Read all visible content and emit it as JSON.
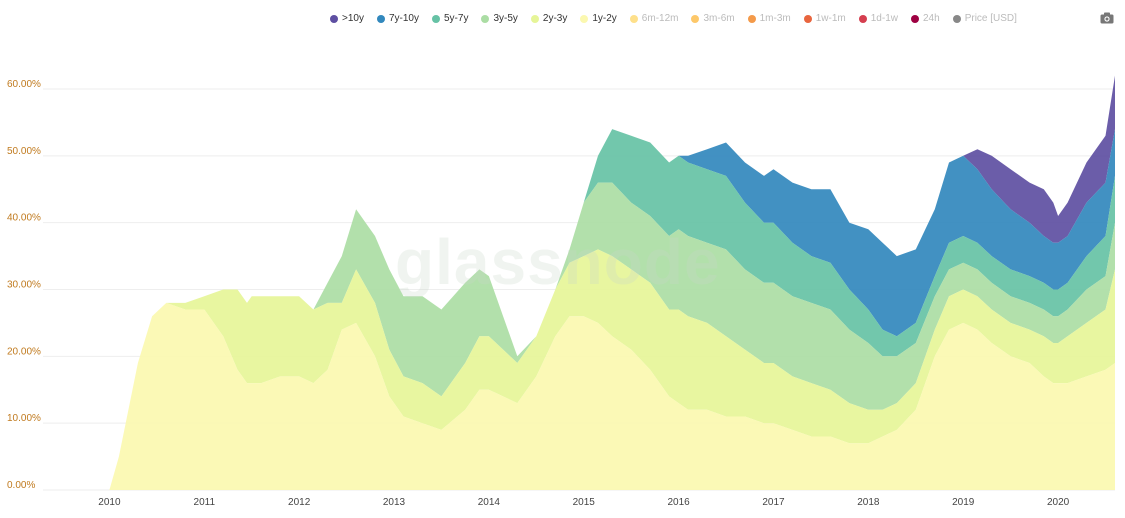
{
  "watermark": "glassnode",
  "legend": [
    {
      "label": ">10y",
      "color": "#5e4fa2",
      "active": true
    },
    {
      "label": "7y-10y",
      "color": "#3288bd",
      "active": true
    },
    {
      "label": "5y-7y",
      "color": "#66c2a5",
      "active": true
    },
    {
      "label": "3y-5y",
      "color": "#abdda4",
      "active": true
    },
    {
      "label": "2y-3y",
      "color": "#e6f598",
      "active": true
    },
    {
      "label": "1y-2y",
      "color": "#fbf8b0",
      "active": true
    },
    {
      "label": "6m-12m",
      "color": "#fee08b",
      "active": false
    },
    {
      "label": "3m-6m",
      "color": "#fdc86a",
      "active": false
    },
    {
      "label": "1m-3m",
      "color": "#f49a4a",
      "active": false
    },
    {
      "label": "1w-1m",
      "color": "#e8653e",
      "active": false
    },
    {
      "label": "1d-1w",
      "color": "#d53e4f",
      "active": false
    },
    {
      "label": "24h",
      "color": "#9e0142",
      "active": false
    },
    {
      "label": "Price [USD]",
      "color": "#888888",
      "active": false
    }
  ],
  "chart_data": {
    "type": "area",
    "stacked": true,
    "x": [
      2009.9,
      2010.0,
      2010.1,
      2010.3,
      2010.45,
      2010.6,
      2010.8,
      2011.0,
      2011.2,
      2011.35,
      2011.45,
      2011.5,
      2011.6,
      2011.8,
      2012.0,
      2012.15,
      2012.3,
      2012.45,
      2012.6,
      2012.8,
      2012.95,
      2013.1,
      2013.3,
      2013.5,
      2013.75,
      2013.9,
      2014.0,
      2014.15,
      2014.3,
      2014.5,
      2014.7,
      2014.85,
      2015.0,
      2015.15,
      2015.3,
      2015.5,
      2015.7,
      2015.9,
      2016.0,
      2016.1,
      2016.3,
      2016.5,
      2016.7,
      2016.9,
      2017.0,
      2017.2,
      2017.4,
      2017.6,
      2017.8,
      2018.0,
      2018.15,
      2018.3,
      2018.5,
      2018.7,
      2018.85,
      2019.0,
      2019.15,
      2019.3,
      2019.5,
      2019.7,
      2019.85,
      2019.95,
      2020.0,
      2020.1,
      2020.3,
      2020.5,
      2020.6
    ],
    "series": [
      {
        "name": "1y-2y",
        "values": [
          0,
          0,
          5,
          19,
          26,
          28,
          27,
          27,
          23,
          18,
          16,
          16,
          16,
          17,
          17,
          16,
          18,
          24,
          25,
          20,
          14,
          11,
          10,
          9,
          12,
          15,
          15,
          14,
          13,
          17,
          23,
          26,
          26,
          25,
          23,
          21,
          18,
          14,
          13,
          12,
          12,
          11,
          11,
          10,
          10,
          9,
          8,
          8,
          7,
          7,
          8,
          9,
          12,
          20,
          24,
          25,
          24,
          22,
          20,
          19,
          17,
          16,
          16,
          16,
          17,
          18,
          19
        ]
      },
      {
        "name": "2y-3y",
        "values": [
          0,
          0,
          0,
          0,
          0,
          0,
          1,
          2,
          7,
          12,
          12,
          13,
          13,
          12,
          12,
          11,
          10,
          4,
          8,
          8,
          7,
          6,
          6,
          5,
          7,
          8,
          8,
          7,
          6,
          6,
          7,
          8,
          9,
          11,
          12,
          12,
          13,
          13,
          14,
          14,
          13,
          12,
          10,
          9,
          9,
          8,
          8,
          7,
          6,
          5,
          4,
          4,
          4,
          4,
          5,
          5,
          5,
          5,
          5,
          5,
          6,
          6,
          6,
          7,
          8,
          9,
          14
        ]
      },
      {
        "name": "3y-5y",
        "values": [
          0,
          0,
          0,
          0,
          0,
          0,
          0,
          0,
          0,
          0,
          0,
          0,
          0,
          0,
          0,
          0,
          3,
          7,
          9,
          10,
          12,
          12,
          13,
          13,
          12,
          10,
          9,
          5,
          1,
          0,
          0,
          2,
          8,
          10,
          11,
          10,
          10,
          11,
          12,
          12,
          12,
          13,
          12,
          12,
          12,
          12,
          12,
          12,
          11,
          10,
          8,
          7,
          6,
          5,
          4,
          4,
          4,
          4,
          4,
          4,
          4,
          4,
          4,
          4,
          5,
          5,
          7
        ]
      },
      {
        "name": "5y-7y",
        "values": [
          0,
          0,
          0,
          0,
          0,
          0,
          0,
          0,
          0,
          0,
          0,
          0,
          0,
          0,
          0,
          0,
          0,
          0,
          0,
          0,
          0,
          0,
          0,
          0,
          0,
          0,
          0,
          0,
          0,
          0,
          0,
          0,
          0,
          4,
          8,
          10,
          11,
          11,
          11,
          11,
          11,
          11,
          10,
          9,
          9,
          8,
          7,
          7,
          6,
          5,
          4,
          3,
          3,
          3,
          4,
          4,
          4,
          4,
          4,
          4,
          4,
          4,
          4,
          4,
          5,
          6,
          7
        ]
      },
      {
        "name": "7y-10y",
        "values": [
          0,
          0,
          0,
          0,
          0,
          0,
          0,
          0,
          0,
          0,
          0,
          0,
          0,
          0,
          0,
          0,
          0,
          0,
          0,
          0,
          0,
          0,
          0,
          0,
          0,
          0,
          0,
          0,
          0,
          0,
          0,
          0,
          0,
          0,
          0,
          0,
          0,
          0,
          0,
          1,
          3,
          5,
          6,
          7,
          8,
          9,
          10,
          11,
          10,
          12,
          13,
          12,
          11,
          10,
          12,
          12,
          11,
          10,
          9,
          8,
          7,
          7,
          7,
          7,
          8,
          8,
          7
        ]
      },
      {
        "name": ">10y",
        "values": [
          0,
          0,
          0,
          0,
          0,
          0,
          0,
          0,
          0,
          0,
          0,
          0,
          0,
          0,
          0,
          0,
          0,
          0,
          0,
          0,
          0,
          0,
          0,
          0,
          0,
          0,
          0,
          0,
          0,
          0,
          0,
          0,
          0,
          0,
          0,
          0,
          0,
          0,
          0,
          0,
          0,
          0,
          0,
          0,
          0,
          0,
          0,
          0,
          0,
          0,
          0,
          0,
          0,
          0,
          0,
          0,
          3,
          5,
          6,
          6,
          7,
          6,
          4,
          5,
          6,
          7,
          8
        ]
      }
    ],
    "ylim": [
      0,
      60
    ],
    "xlim": [
      2009.3,
      2020.6
    ],
    "yticks": [
      {
        "value": 0,
        "label": "0.00%"
      },
      {
        "value": 10,
        "label": "10.00%"
      },
      {
        "value": 20,
        "label": "20.00%"
      },
      {
        "value": 30,
        "label": "30.00%"
      },
      {
        "value": 40,
        "label": "40.00%"
      },
      {
        "value": 50,
        "label": "50.00%"
      },
      {
        "value": 60,
        "label": "60.00%"
      }
    ],
    "xticks": [
      {
        "value": 2010,
        "label": "2010"
      },
      {
        "value": 2011,
        "label": "2011"
      },
      {
        "value": 2012,
        "label": "2012"
      },
      {
        "value": 2013,
        "label": "2013"
      },
      {
        "value": 2014,
        "label": "2014"
      },
      {
        "value": 2015,
        "label": "2015"
      },
      {
        "value": 2016,
        "label": "2016"
      },
      {
        "value": 2017,
        "label": "2017"
      },
      {
        "value": 2018,
        "label": "2018"
      },
      {
        "value": 2019,
        "label": "2019"
      },
      {
        "value": 2020,
        "label": "2020"
      }
    ],
    "grid": true,
    "legend_position": "top-right"
  }
}
